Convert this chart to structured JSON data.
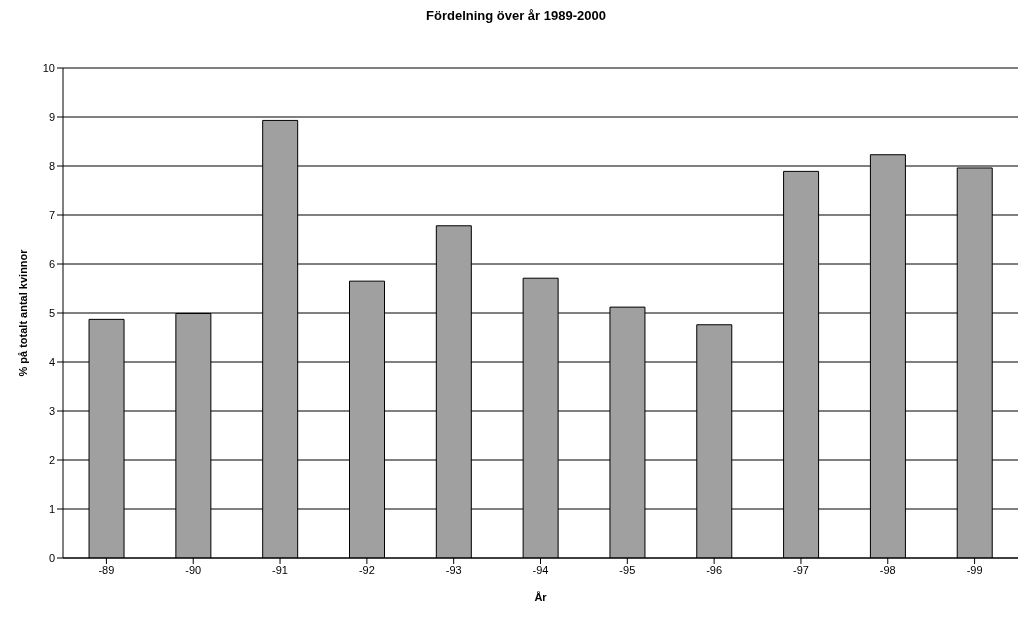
{
  "chart_data": {
    "type": "bar",
    "title": "Fördelning över år 1989-2000",
    "xlabel": "År",
    "ylabel": "% på totalt antal kvinnor",
    "categories": [
      "-89",
      "-90",
      "-91",
      "-92",
      "-93",
      "-94",
      "-95",
      "-96",
      "-97",
      "-98",
      "-99"
    ],
    "values": [
      4.87,
      4.99,
      8.93,
      5.65,
      6.78,
      5.71,
      5.12,
      4.76,
      7.89,
      8.23,
      7.96
    ],
    "color": "#a0a0a0",
    "ylim": [
      0,
      10
    ],
    "yticks": [
      0,
      1,
      2,
      3,
      4,
      5,
      6,
      7,
      8,
      9,
      10
    ],
    "grid": "y"
  }
}
